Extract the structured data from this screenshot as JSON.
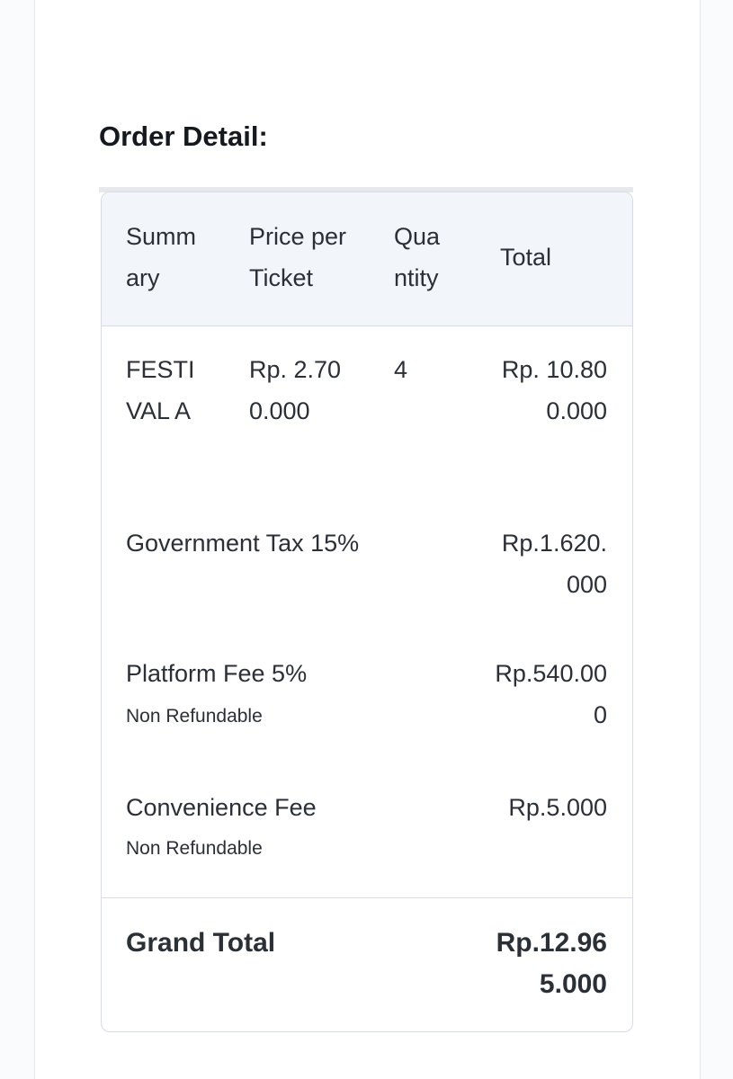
{
  "title": "Order Detail:",
  "table": {
    "headers": [
      "Summary",
      "Price per Ticket",
      "Quantity",
      "Total"
    ],
    "item": {
      "name": "FESTIVAL A",
      "price": "Rp. 2.700.000",
      "quantity": "4",
      "total": "Rp. 10.800.000"
    },
    "fees": [
      {
        "label": "Government Tax 15%",
        "amount": "Rp.1.620.000"
      },
      {
        "label": "Platform Fee 5%",
        "note": "Non Refundable",
        "amount": "Rp.540.000"
      },
      {
        "label": "Convenience Fee",
        "note": "Non Refundable",
        "amount": "Rp.5.000"
      }
    ],
    "grand_total": {
      "label": "Grand Total",
      "amount": "Rp.12.965.000"
    }
  }
}
